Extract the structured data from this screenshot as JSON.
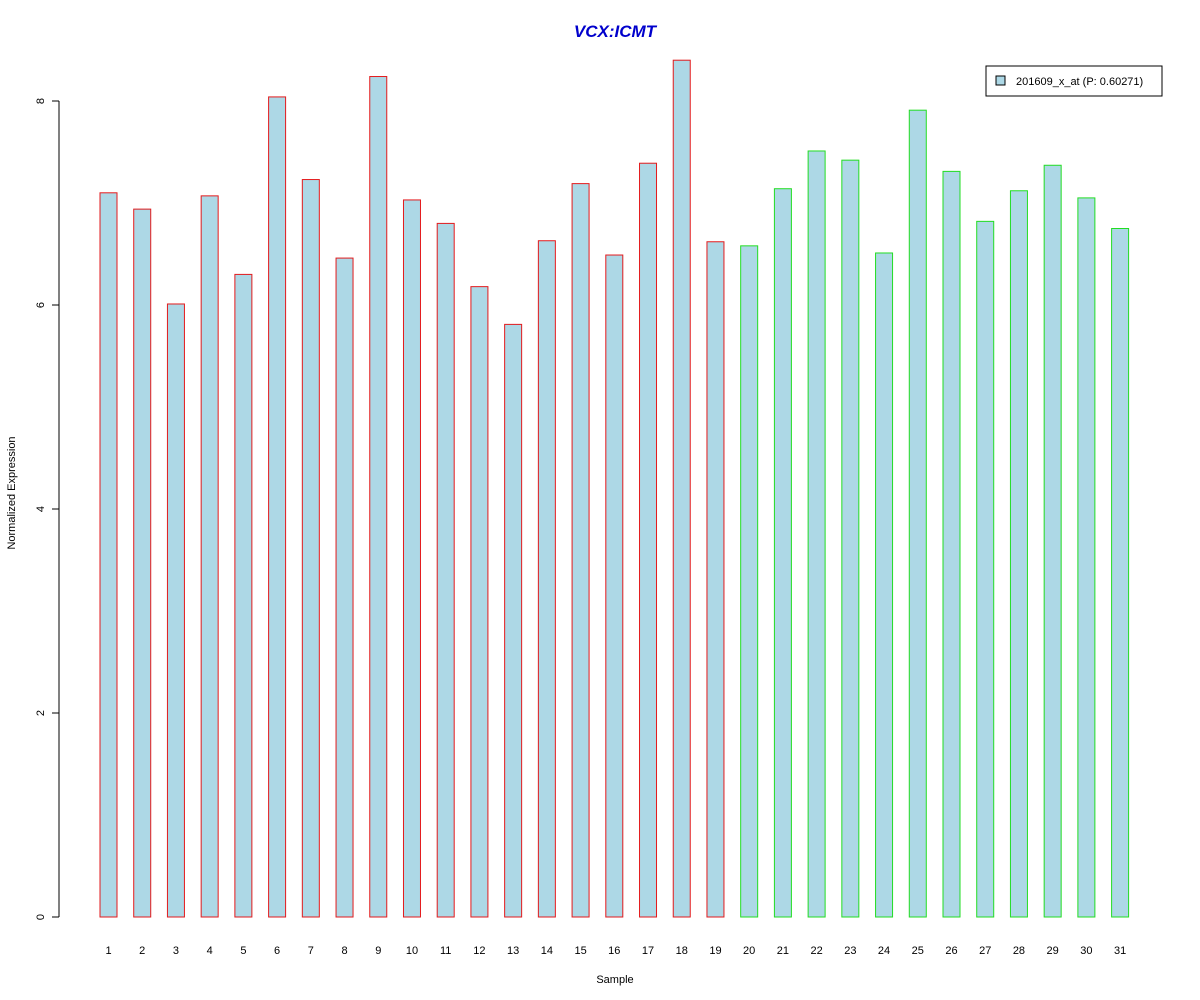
{
  "chart_data": {
    "type": "bar",
    "title": "VCX:ICMT",
    "xlabel": "Sample",
    "ylabel": "Normalized Expression",
    "categories": [
      "1",
      "2",
      "3",
      "4",
      "5",
      "6",
      "7",
      "8",
      "9",
      "10",
      "11",
      "12",
      "13",
      "14",
      "15",
      "16",
      "17",
      "18",
      "19",
      "20",
      "21",
      "22",
      "23",
      "24",
      "25",
      "26",
      "27",
      "28",
      "29",
      "30",
      "31"
    ],
    "series": [
      {
        "name": "201609_x_at (P: 0.60271)",
        "values": [
          7.1,
          6.94,
          6.01,
          7.07,
          6.3,
          8.04,
          7.23,
          6.46,
          8.24,
          7.03,
          6.8,
          6.18,
          5.81,
          6.63,
          7.19,
          6.49,
          7.39,
          8.4,
          6.62,
          6.58,
          7.14,
          7.51,
          7.42,
          6.51,
          7.91,
          7.31,
          6.82,
          7.12,
          7.37,
          7.05,
          6.75
        ]
      }
    ],
    "groups": [
      {
        "from": 1,
        "to": 19,
        "border_color": "#e31a1c"
      },
      {
        "from": 20,
        "to": 31,
        "border_color": "#22dd22"
      }
    ],
    "yticks": [
      "0",
      "2",
      "4",
      "6",
      "8"
    ],
    "ylim": [
      0,
      8.4
    ],
    "grid": false,
    "legend_position": "top-right",
    "colors": {
      "title": "#0000cc",
      "bar_fill": "#add8e6",
      "axis": "#000000"
    }
  }
}
